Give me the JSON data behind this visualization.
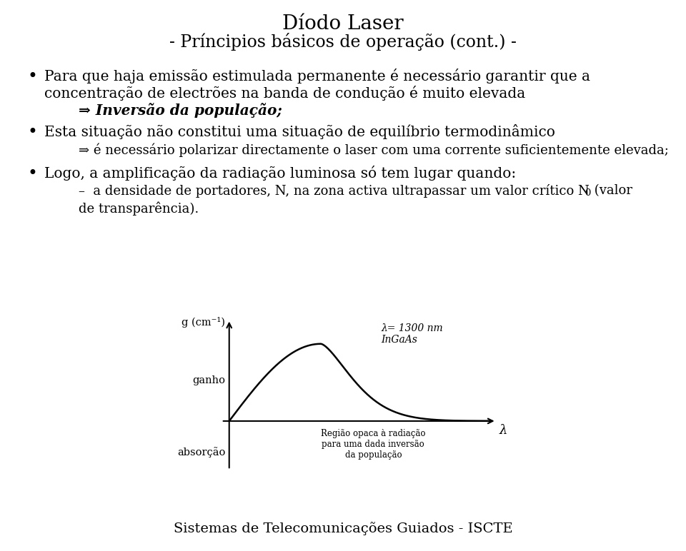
{
  "title_line1": "Díodo Laser",
  "title_line2": "- Príncipios básicos de operação (cont.) -",
  "bullet1_line1": "Para que haja emissão estimulada permanente é necessário garantir que a",
  "bullet1_line2": "concentração de electrões na banda de condução é muito elevada",
  "bullet1_sub": "⇒ Inversão da população;",
  "bullet2_line1": "Esta situação não constitui uma situação de equilíbrio termodinâmico",
  "bullet2_sub": "⇒ é necessário polarizar directamente o laser com uma corrente suficientemente elevada;",
  "bullet3_line1": "Logo, a amplificação da radiação luminosa só tem lugar quando:",
  "bullet3_sub1": "–  a densidade de portadores, N, na zona activa ultrapassar um valor crítico N",
  "bullet3_sub1_0": "0",
  "bullet3_sub1_end": " (valor",
  "bullet3_sub2": "de transparência).",
  "ylabel_top": "g (cm⁻¹)",
  "ylabel_ganho": "ganho",
  "ylabel_absor": "absorção",
  "annotation_lambda": "λ= 1300 nm\nInGaAs",
  "annotation_region": "Região opaca à radiação\npara uma dada inversão\nda população",
  "xlabel_lambda": "λ",
  "footer": "Sistemas de Telecomunicações Guiados - ISCTE",
  "bg_color": "#ffffff",
  "text_color": "#000000"
}
